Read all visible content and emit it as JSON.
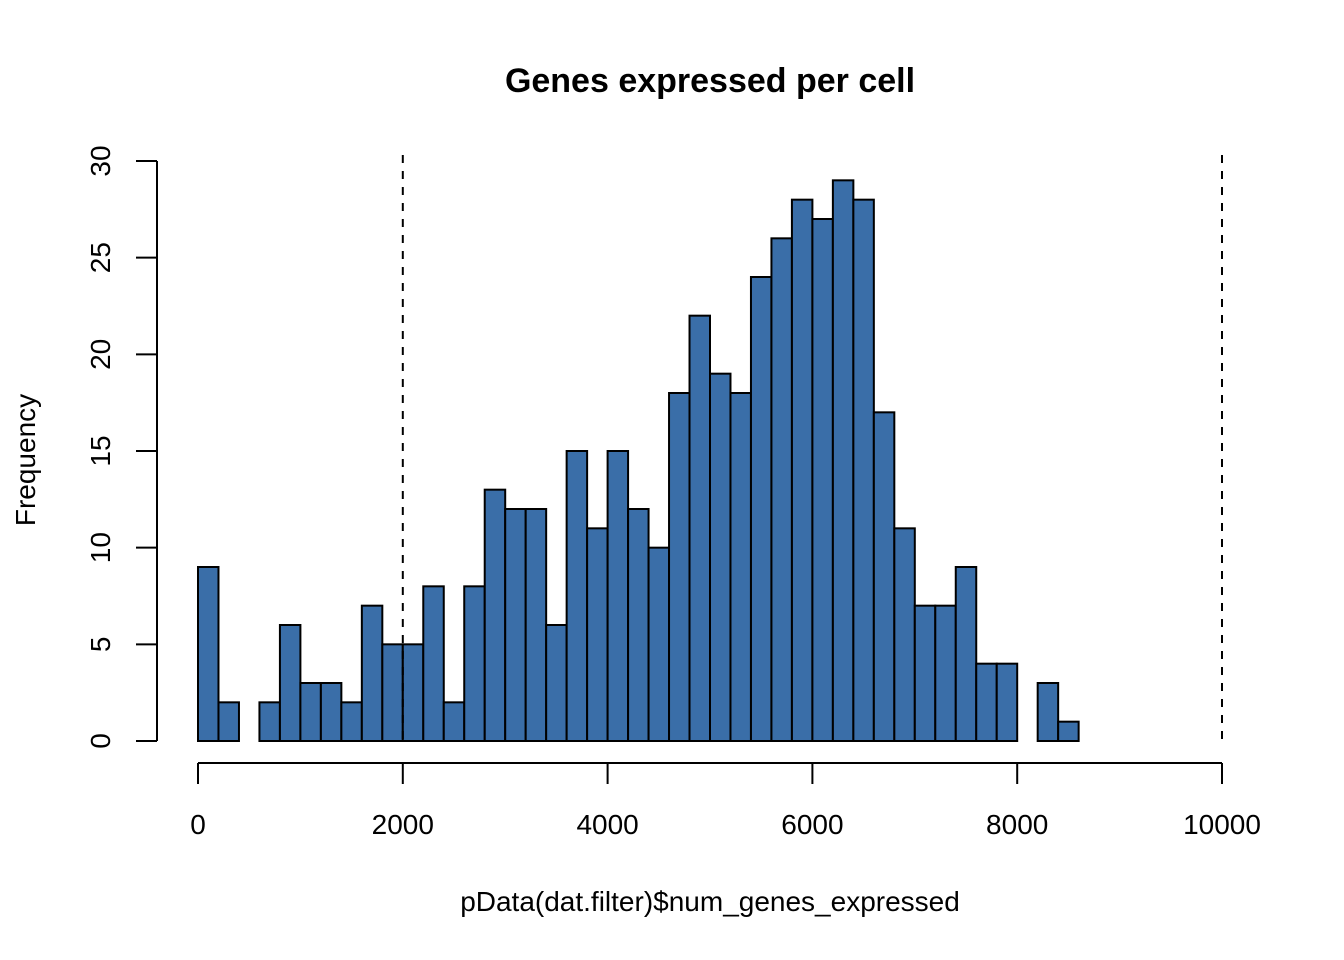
{
  "chart_data": {
    "type": "bar",
    "title": "Genes expressed per cell",
    "xlabel": "pData(dat.filter)$num_genes_expressed",
    "ylabel": "Frequency",
    "bar_color": "#3A6EA8",
    "bin_width": 200,
    "bins_start": [
      0,
      200,
      400,
      600,
      800,
      1000,
      1200,
      1400,
      1600,
      1800,
      2000,
      2200,
      2400,
      2600,
      2800,
      3000,
      3200,
      3400,
      3600,
      3800,
      4000,
      4200,
      4400,
      4600,
      4800,
      5000,
      5200,
      5400,
      5600,
      5800,
      6000,
      6200,
      6400,
      6600,
      6800,
      7000,
      7200,
      7400,
      7600,
      7800,
      8000,
      8200,
      8400
    ],
    "values": [
      9,
      2,
      0,
      2,
      6,
      3,
      3,
      2,
      7,
      5,
      5,
      8,
      2,
      8,
      13,
      12,
      12,
      6,
      15,
      11,
      15,
      12,
      10,
      18,
      22,
      19,
      18,
      24,
      26,
      28,
      27,
      29,
      28,
      17,
      11,
      7,
      7,
      9,
      4,
      4,
      0,
      3,
      1
    ],
    "xlim": [
      0,
      10000
    ],
    "ylim": [
      0,
      30
    ],
    "x_ticks": [
      "0",
      "2000",
      "4000",
      "6000",
      "8000",
      "10000"
    ],
    "y_ticks": [
      "0",
      "5",
      "10",
      "15",
      "20",
      "25",
      "30"
    ],
    "vertical_dashed_lines": [
      2000,
      10000
    ]
  }
}
